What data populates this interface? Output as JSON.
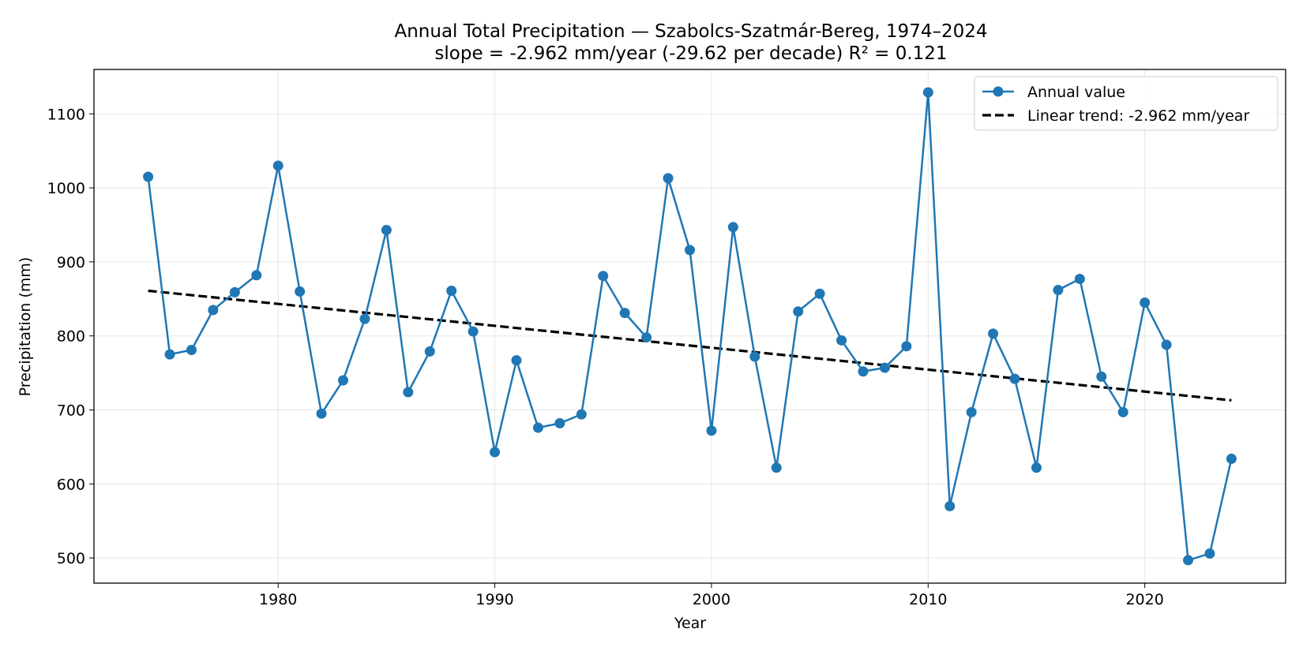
{
  "chart_data": {
    "type": "line",
    "title": "Annual Total Precipitation — Szabolcs-Szatmár-Bereg, 1974–2024",
    "subtitle": "slope = -2.962 mm/year  (-29.62 per decade)   R² = 0.121",
    "xlabel": "Year",
    "ylabel": "Precipitation (mm)",
    "xlim": [
      1971.5,
      2026.5
    ],
    "ylim": [
      466,
      1160
    ],
    "x_ticks": [
      1980,
      1990,
      2000,
      2010,
      2020
    ],
    "y_ticks": [
      500,
      600,
      700,
      800,
      900,
      1000,
      1100
    ],
    "grid": true,
    "legend_position": "top-right",
    "colors": {
      "series": "#1f77b4",
      "trend": "#000000"
    },
    "series": [
      {
        "name": "Annual value",
        "style": "line-with-markers",
        "x": [
          1974,
          1975,
          1976,
          1977,
          1978,
          1979,
          1980,
          1981,
          1982,
          1983,
          1984,
          1985,
          1986,
          1987,
          1988,
          1989,
          1990,
          1991,
          1992,
          1993,
          1994,
          1995,
          1996,
          1997,
          1998,
          1999,
          2000,
          2001,
          2002,
          2003,
          2004,
          2005,
          2006,
          2007,
          2008,
          2009,
          2010,
          2011,
          2012,
          2013,
          2014,
          2015,
          2016,
          2017,
          2018,
          2019,
          2020,
          2021,
          2022,
          2023,
          2024
        ],
        "values": [
          1015,
          775,
          781,
          835,
          859,
          882,
          1030,
          860,
          695,
          740,
          823,
          943,
          724,
          779,
          861,
          806,
          643,
          767,
          676,
          682,
          694,
          881,
          831,
          798,
          1013,
          916,
          672,
          947,
          772,
          622,
          833,
          857,
          794,
          752,
          757,
          786,
          1129,
          570,
          697,
          803,
          742,
          622,
          862,
          877,
          745,
          697,
          845,
          788,
          497,
          506,
          634
        ]
      },
      {
        "name": "Linear trend: -2.962 mm/year",
        "style": "dashed",
        "x": [
          1974,
          2024
        ],
        "values": [
          861,
          713
        ]
      }
    ]
  }
}
